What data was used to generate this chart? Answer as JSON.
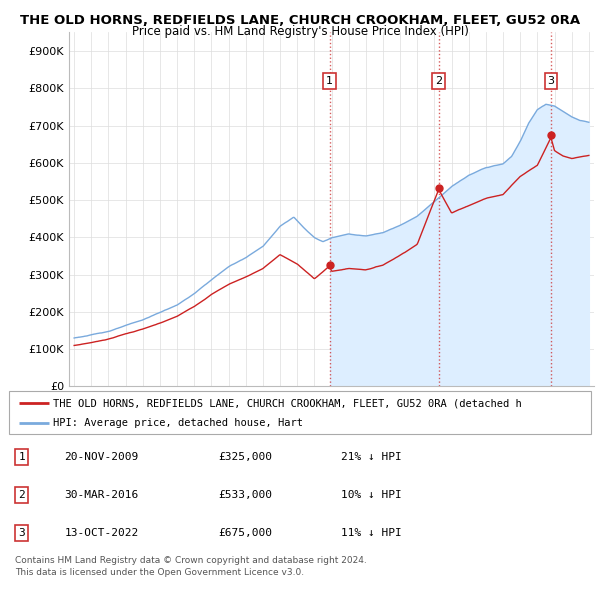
{
  "title": "THE OLD HORNS, REDFIELDS LANE, CHURCH CROOKHAM, FLEET, GU52 0RA",
  "subtitle": "Price paid vs. HM Land Registry's House Price Index (HPI)",
  "ylim": [
    0,
    950000
  ],
  "yticks": [
    0,
    100000,
    200000,
    300000,
    400000,
    500000,
    600000,
    700000,
    800000,
    900000
  ],
  "ytick_labels": [
    "£0",
    "£100K",
    "£200K",
    "£300K",
    "£400K",
    "£500K",
    "£600K",
    "£700K",
    "£800K",
    "£900K"
  ],
  "xlim_start": 1994.7,
  "xlim_end": 2025.3,
  "sale_dates": [
    2009.89,
    2016.25,
    2022.79
  ],
  "sale_prices": [
    325000,
    533000,
    675000
  ],
  "sale_labels": [
    "1",
    "2",
    "3"
  ],
  "sale_date_labels": [
    "20-NOV-2009",
    "30-MAR-2016",
    "13-OCT-2022"
  ],
  "sale_price_strs": [
    "£325,000",
    "£533,000",
    "£675,000"
  ],
  "sale_pct": [
    "21% ↓ HPI",
    "10% ↓ HPI",
    "11% ↓ HPI"
  ],
  "hpi_color": "#7aaadd",
  "hpi_fill_color": "#ddeeff",
  "price_color": "#cc2222",
  "vline_color": "#cc3333",
  "grid_color": "#dddddd",
  "legend_label_price": "THE OLD HORNS, REDFIELDS LANE, CHURCH CROOKHAM, FLEET, GU52 0RA (detached h",
  "legend_label_hpi": "HPI: Average price, detached house, Hart",
  "footer1": "Contains HM Land Registry data © Crown copyright and database right 2024.",
  "footer2": "This data is licensed under the Open Government Licence v3.0."
}
